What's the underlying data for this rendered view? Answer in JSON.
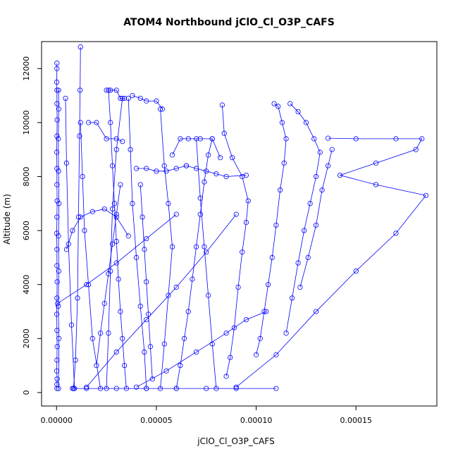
{
  "chart_data": {
    "type": "line",
    "title": "ATOM4 Northbound jClO_Cl_O3P_CAFS",
    "xlabel": "jClO_Cl_O3P_CAFS",
    "ylabel": "Altitude (m)",
    "xlim": [
      -7.5e-06,
      0.0001905
    ],
    "ylim": [
      -500,
      13000
    ],
    "x_ticks": [
      0,
      5e-05,
      0.0001,
      0.00015
    ],
    "x_tick_labels": [
      "0.00000",
      "0.00005",
      "0.00010",
      "0.00015"
    ],
    "y_ticks": [
      0,
      2000,
      4000,
      6000,
      8000,
      10000,
      12000
    ],
    "y_tick_labels": [
      "0",
      "2000",
      "4000",
      "6000",
      "8000",
      "10000",
      "12000"
    ],
    "grid": false,
    "legend": "none",
    "color": "#0000ff",
    "series": [
      {
        "x": [
          2e-07,
          2e-07,
          3e-07,
          1e-07,
          2e-07,
          3e-07,
          2e-07,
          1e-07,
          2e-07,
          3e-07,
          2e-07,
          2e-07,
          1e-07,
          2e-07,
          3e-07,
          2e-07,
          2e-07,
          1e-07,
          2e-07,
          3e-07,
          2e-07,
          2e-07,
          1e-07,
          2e-07,
          2e-07
        ],
        "y": [
          150,
          300,
          500,
          800,
          1200,
          1700,
          2300,
          2900,
          3500,
          4100,
          4700,
          5300,
          5900,
          6500,
          7100,
          7700,
          8300,
          8900,
          9500,
          10100,
          10700,
          11200,
          11500,
          12000,
          12200
        ]
      },
      {
        "x": [
          1e-06,
          1.2e-06,
          9e-07,
          1.1e-06,
          1e-06,
          1.2e-06,
          1e-06,
          9e-07,
          1.1e-06,
          1e-06
        ],
        "y": [
          150,
          2000,
          3200,
          4500,
          5800,
          7000,
          8200,
          9400,
          10500,
          11200
        ]
      },
      {
        "x": [
          8.5e-06,
          9.5e-06,
          1.05e-05,
          1.1e-05,
          1.15e-05,
          1.18e-05,
          1.2e-05
        ],
        "y": [
          150,
          1200,
          3500,
          6500,
          9500,
          11200,
          12800
        ]
      },
      {
        "x": [
          9e-06,
          7.5e-06,
          6e-06,
          5e-06,
          4.5e-06
        ],
        "y": [
          150,
          2500,
          5500,
          8500,
          10900
        ]
      },
      {
        "x": [
          3.5e-05,
          3.4e-05,
          3.3e-05,
          3.2e-05,
          3.1e-05,
          3e-05,
          2.9e-05,
          2.8e-05,
          2.7e-05,
          2.6e-05
        ],
        "y": [
          150,
          1000,
          2000,
          3000,
          4200,
          5600,
          7000,
          8400,
          10000,
          11200
        ]
      },
      {
        "x": [
          4.5e-05,
          4.4e-05,
          4.2e-05,
          4e-05,
          3.8e-05,
          3.7e-05,
          3.6e-05
        ],
        "y": [
          150,
          1500,
          3200,
          5000,
          7000,
          9000,
          10900
        ]
      },
      {
        "x": [
          5.2e-05,
          5.4e-05,
          5.6e-05,
          5.8e-05,
          5.6e-05,
          5.4e-05,
          5.2e-05
        ],
        "y": [
          150,
          1800,
          3600,
          5400,
          7000,
          8400,
          10500
        ]
      },
      {
        "x": [
          2.2e-05,
          1.8e-05,
          1.6e-05,
          1.4e-05,
          1.3e-05,
          1.2e-05
        ],
        "y": [
          150,
          2000,
          4000,
          6000,
          8000,
          10000
        ]
      },
      {
        "x": [
          2.5e-05,
          2.6e-05,
          2.7e-05,
          2.8e-05,
          3e-05,
          3.3e-05
        ],
        "y": [
          150,
          2200,
          4500,
          6800,
          9000,
          10900
        ]
      },
      {
        "x": [
          6e-05,
          6.2e-05,
          6.4e-05,
          6.6e-05,
          6.8e-05,
          7e-05,
          7.2e-05,
          7.4e-05,
          7.6e-05,
          7.8e-05
        ],
        "y": [
          150,
          1000,
          2000,
          3000,
          4200,
          5400,
          6600,
          7800,
          8800,
          9400
        ]
      },
      {
        "x": [
          8e-05,
          7.8e-05,
          7.6e-05,
          7.4e-05,
          7.2e-05,
          7e-05
        ],
        "y": [
          150,
          1800,
          3600,
          5400,
          7200,
          9400
        ]
      },
      {
        "x": [
          8.5e-05,
          8.7e-05,
          8.9e-05,
          9.1e-05,
          9.3e-05,
          9.5e-05,
          9.6e-05,
          9.3e-05,
          8.8e-05,
          8.4e-05,
          8.3e-05
        ],
        "y": [
          600,
          1300,
          2400,
          3900,
          5200,
          6300,
          7100,
          8000,
          8700,
          9600,
          10650
        ]
      },
      {
        "x": [
          0.0001,
          0.000102,
          0.000104,
          0.000106,
          0.000108,
          0.00011,
          0.000112,
          0.000114,
          0.000115,
          0.000113,
          0.000111,
          0.000109
        ],
        "y": [
          1400,
          2000,
          3000,
          4000,
          5000,
          6200,
          7500,
          8500,
          9400,
          10000,
          10600,
          10700
        ]
      },
      {
        "x": [
          0.000115,
          0.000118,
          0.000121,
          0.000124,
          0.000127,
          0.00013,
          0.000132,
          0.000129,
          0.000125,
          0.000121,
          0.000117
        ],
        "y": [
          2200,
          3500,
          4800,
          6000,
          7000,
          8000,
          8900,
          9400,
          10000,
          10400,
          10700
        ]
      },
      {
        "x": [
          0.000122,
          0.000126,
          0.00013,
          0.000133,
          0.000136,
          0.000138
        ],
        "y": [
          3900,
          5000,
          6200,
          7500,
          8400,
          9000
        ]
      },
      {
        "x": [
          9e-05,
          0.00011,
          0.00013,
          0.00015,
          0.00017,
          0.000185,
          0.00016,
          0.000142,
          0.00016,
          0.00018,
          0.000183,
          0.00017,
          0.00015,
          0.000136
        ],
        "y": [
          200,
          1400,
          3000,
          4500,
          5900,
          7300,
          7700,
          8050,
          8500,
          9000,
          9400,
          9400,
          9400,
          9420
        ]
      },
      {
        "x": [
          4e-05,
          5.5e-05,
          7e-05,
          8.5e-05,
          9.5e-05,
          0.000105
        ],
        "y": [
          200,
          800,
          1500,
          2200,
          2700,
          3000
        ]
      },
      {
        "x": [
          1.5e-05,
          3e-05,
          4.5e-05,
          6e-05,
          7.5e-05,
          9e-05
        ],
        "y": [
          200,
          1500,
          2700,
          3900,
          5200,
          6600
        ]
      },
      {
        "x": [
          5e-07,
          1.5e-05,
          3e-05,
          4.5e-05,
          6e-05
        ],
        "y": [
          3300,
          4000,
          4800,
          5700,
          6600
        ]
      },
      {
        "x": [
          8e-06,
          1.5e-05,
          3e-05,
          4.5e-05,
          6e-05,
          7.5e-05,
          9e-05,
          0.00011
        ],
        "y": [
          150,
          150,
          150,
          150,
          150,
          150,
          150,
          150
        ]
      },
      {
        "x": [
          4e-05,
          4.5e-05,
          5e-05,
          5.5e-05,
          6e-05,
          6.5e-05
        ],
        "y": [
          8300,
          8300,
          8200,
          8200,
          8300,
          8400
        ]
      },
      {
        "x": [
          6.5e-05,
          7e-05,
          7.5e-05,
          8e-05,
          8.5e-05,
          9.5e-05
        ],
        "y": [
          8400,
          8300,
          8200,
          8100,
          8000,
          8050
        ]
      },
      {
        "x": [
          1.6e-05,
          2e-05,
          2.5e-05,
          3e-05,
          3.3e-05
        ],
        "y": [
          10000,
          10000,
          9400,
          9400,
          9300
        ]
      },
      {
        "x": [
          2.5e-05,
          2.7e-05,
          3e-05,
          3.2e-05,
          3.4e-05
        ],
        "y": [
          11200,
          11200,
          11200,
          10900,
          10900
        ]
      },
      {
        "x": [
          3.8e-05,
          4.2e-05,
          4.5e-05,
          5e-05,
          5.3e-05
        ],
        "y": [
          11000,
          10900,
          10800,
          10800,
          10500
        ]
      },
      {
        "x": [
          5.8e-05,
          6.2e-05,
          6.6e-05,
          7.2e-05,
          7.8e-05,
          8.2e-05
        ],
        "y": [
          8800,
          9400,
          9400,
          9400,
          9400,
          8700
        ]
      },
      {
        "x": [
          5e-06,
          8e-06,
          1.2e-05,
          1.8e-05,
          2.4e-05,
          3e-05,
          3.6e-05
        ],
        "y": [
          5300,
          6000,
          6500,
          6700,
          6800,
          6500,
          5800
        ]
      },
      {
        "x": [
          2e-05,
          2.2e-05,
          2.4e-05,
          2.6e-05,
          2.8e-05,
          3e-05,
          3.2e-05
        ],
        "y": [
          1000,
          2200,
          3300,
          4400,
          5500,
          6600,
          7700
        ]
      },
      {
        "x": [
          4.8e-05,
          4.7e-05,
          4.6e-05,
          4.5e-05,
          4.4e-05,
          4.3e-05,
          4.2e-05
        ],
        "y": [
          500,
          1700,
          2900,
          4100,
          5300,
          6500,
          7700
        ]
      }
    ]
  }
}
